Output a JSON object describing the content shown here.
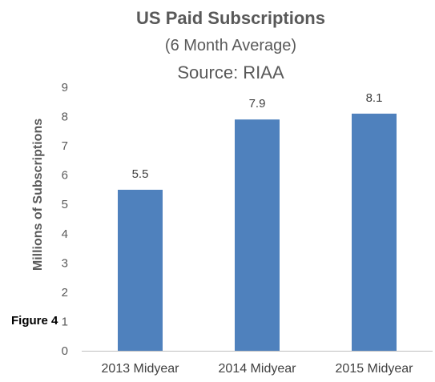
{
  "figure_label": "Figure 4",
  "chart_data": {
    "type": "bar",
    "title": "US Paid Subscriptions",
    "subtitle": "(6 Month Average)",
    "source": "Source: RIAA",
    "categories": [
      "2013 Midyear",
      "2014 Midyear",
      "2015 Midyear"
    ],
    "values": [
      5.5,
      7.9,
      8.1
    ],
    "data_labels": [
      "5.5",
      "7.9",
      "8.1"
    ],
    "xlabel": "",
    "ylabel": "Millions of Subscriptions",
    "ylim": [
      0,
      9
    ],
    "yticks": [
      0,
      1,
      2,
      3,
      4,
      5,
      6,
      7,
      8,
      9
    ],
    "grid": false,
    "bar_color": "#4F81BD",
    "axis_color": "#BFBFBF"
  }
}
